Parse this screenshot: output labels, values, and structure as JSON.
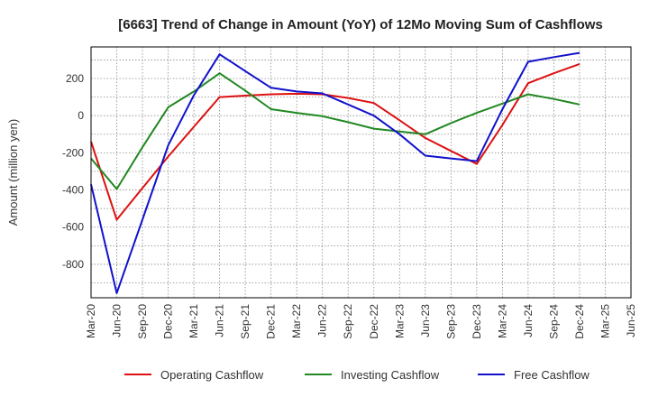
{
  "chart_data": {
    "type": "line",
    "title": "[6663]  Trend of Change in Amount (YoY) of 12Mo Moving Sum of Cashflows",
    "xlabel": "",
    "ylabel": "Amount (million yen)",
    "ylim": [
      -980,
      370
    ],
    "yticks": [
      200,
      0,
      -200,
      -400,
      -600,
      -800
    ],
    "grid": true,
    "legend_position": "bottom",
    "categories": [
      "Mar-20",
      "Jun-20",
      "Sep-20",
      "Dec-20",
      "Mar-21",
      "Jun-21",
      "Sep-21",
      "Dec-21",
      "Mar-22",
      "Jun-22",
      "Sep-22",
      "Dec-22",
      "Mar-23",
      "Jun-23",
      "Sep-23",
      "Dec-23",
      "Mar-24",
      "Jun-24",
      "Sep-24",
      "Dec-24",
      "Mar-25",
      "Jun-25"
    ],
    "series": [
      {
        "name": "Operating Cashflow",
        "color": "#dd1111",
        "values": [
          -140,
          -560,
          -390,
          -220,
          -60,
          100,
          108,
          115,
          118,
          115,
          95,
          68,
          -25,
          -120,
          -190,
          -260,
          -50,
          175,
          228,
          278,
          null,
          null
        ]
      },
      {
        "name": "Investing Cashflow",
        "color": "#228822",
        "values": [
          -230,
          -395,
          -170,
          45,
          130,
          228,
          135,
          35,
          15,
          -3,
          -35,
          -70,
          -85,
          -100,
          -40,
          15,
          65,
          115,
          90,
          60,
          null,
          null
        ]
      },
      {
        "name": "Free Cashflow",
        "color": "#1111cc",
        "values": [
          -370,
          -955,
          -560,
          -160,
          110,
          330,
          240,
          150,
          130,
          120,
          60,
          0,
          -100,
          -215,
          -230,
          -245,
          35,
          290,
          315,
          338,
          null,
          null
        ]
      }
    ]
  }
}
